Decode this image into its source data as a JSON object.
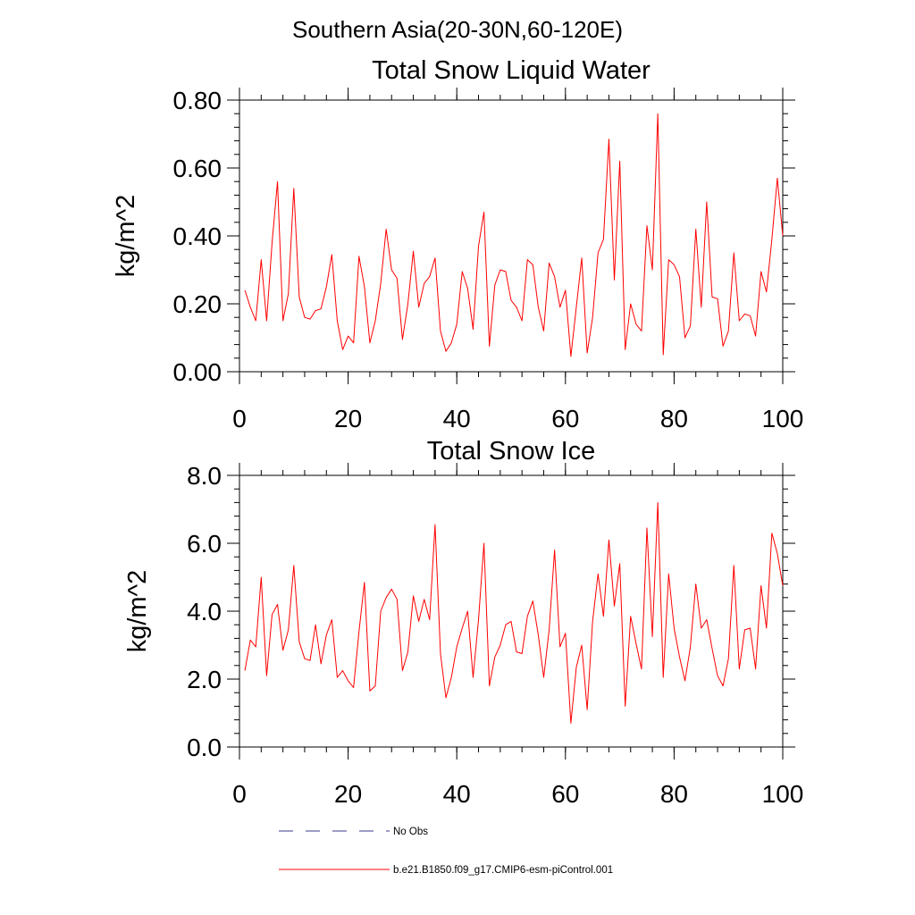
{
  "figure": {
    "suptitle": "Southern Asia(20-30N,60-120E)"
  },
  "chart_data": [
    {
      "type": "line",
      "title": "Total Snow Liquid Water",
      "xlabel": "",
      "ylabel": "kg/m^2",
      "xlim": [
        0,
        100
      ],
      "ylim": [
        0,
        0.8
      ],
      "x_ticks": [
        0,
        20,
        40,
        60,
        80,
        100
      ],
      "x_tick_labels": [
        "0",
        "20",
        "40",
        "60",
        "80",
        "100"
      ],
      "y_ticks": [
        0,
        0.2,
        0.4,
        0.6,
        0.8
      ],
      "y_tick_labels": [
        "0.00",
        "0.20",
        "0.40",
        "0.60",
        "0.80"
      ],
      "y_minor_step": 0.04,
      "x_start": 1,
      "series": [
        {
          "name": "b.e21.B1850.f09_g17.CMIP6-esm-piControl.001",
          "color": "#ff0000",
          "values": [
            0.24,
            0.19,
            0.15,
            0.33,
            0.15,
            0.38,
            0.56,
            0.15,
            0.23,
            0.54,
            0.22,
            0.16,
            0.155,
            0.18,
            0.185,
            0.25,
            0.345,
            0.15,
            0.065,
            0.105,
            0.085,
            0.34,
            0.25,
            0.085,
            0.15,
            0.26,
            0.42,
            0.3,
            0.275,
            0.095,
            0.2,
            0.355,
            0.19,
            0.26,
            0.28,
            0.335,
            0.12,
            0.06,
            0.085,
            0.14,
            0.295,
            0.245,
            0.125,
            0.37,
            0.47,
            0.075,
            0.255,
            0.3,
            0.295,
            0.21,
            0.19,
            0.15,
            0.33,
            0.315,
            0.19,
            0.12,
            0.32,
            0.28,
            0.19,
            0.24,
            0.045,
            0.19,
            0.335,
            0.055,
            0.16,
            0.35,
            0.39,
            0.685,
            0.27,
            0.62,
            0.065,
            0.2,
            0.14,
            0.12,
            0.43,
            0.3,
            0.76,
            0.05,
            0.33,
            0.315,
            0.28,
            0.1,
            0.135,
            0.42,
            0.19,
            0.5,
            0.22,
            0.215,
            0.075,
            0.12,
            0.35,
            0.15,
            0.17,
            0.165,
            0.105,
            0.295,
            0.235,
            0.39,
            0.57,
            0.4
          ]
        }
      ]
    },
    {
      "type": "line",
      "title": "Total Snow Ice",
      "xlabel": "",
      "ylabel": "kg/m^2",
      "xlim": [
        0,
        100
      ],
      "ylim": [
        0,
        8
      ],
      "x_ticks": [
        0,
        20,
        40,
        60,
        80,
        100
      ],
      "x_tick_labels": [
        "0",
        "20",
        "40",
        "60",
        "80",
        "100"
      ],
      "y_ticks": [
        0,
        2,
        4,
        6,
        8
      ],
      "y_tick_labels": [
        "0.0",
        "2.0",
        "4.0",
        "6.0",
        "8.0"
      ],
      "y_minor_step": 0.4,
      "x_start": 1,
      "series": [
        {
          "name": "b.e21.B1850.f09_g17.CMIP6-esm-piControl.001",
          "color": "#ff0000",
          "values": [
            2.25,
            3.15,
            2.95,
            5.0,
            2.1,
            3.9,
            4.2,
            2.85,
            3.45,
            5.35,
            3.1,
            2.6,
            2.55,
            3.6,
            2.45,
            3.3,
            3.75,
            2.05,
            2.25,
            1.95,
            1.75,
            3.4,
            4.85,
            1.65,
            1.8,
            4.0,
            4.4,
            4.65,
            4.35,
            2.25,
            2.8,
            4.45,
            3.7,
            4.35,
            3.75,
            6.55,
            2.75,
            1.45,
            2.05,
            2.95,
            3.5,
            4.0,
            2.05,
            3.75,
            6.0,
            1.8,
            2.65,
            3.0,
            3.6,
            3.7,
            2.8,
            2.75,
            3.85,
            4.3,
            3.3,
            2.05,
            3.45,
            5.8,
            2.95,
            3.35,
            0.7,
            2.35,
            3.0,
            1.1,
            3.7,
            5.1,
            3.85,
            6.1,
            4.15,
            5.4,
            1.2,
            3.85,
            3.05,
            2.3,
            6.45,
            3.25,
            7.2,
            2.05,
            5.1,
            3.5,
            2.65,
            1.95,
            2.95,
            4.8,
            3.5,
            3.75,
            2.9,
            2.1,
            1.8,
            2.6,
            5.35,
            2.3,
            3.45,
            3.5,
            2.3,
            4.75,
            3.5,
            6.3,
            5.7,
            4.75
          ]
        }
      ]
    }
  ],
  "legend": {
    "items": [
      {
        "label": "No Obs",
        "color": "#3b3b8f",
        "style": "dashed"
      },
      {
        "label": "b.e21.B1850.f09_g17.CMIP6-esm-piControl.001",
        "color": "#ff0000",
        "style": "solid"
      }
    ]
  }
}
